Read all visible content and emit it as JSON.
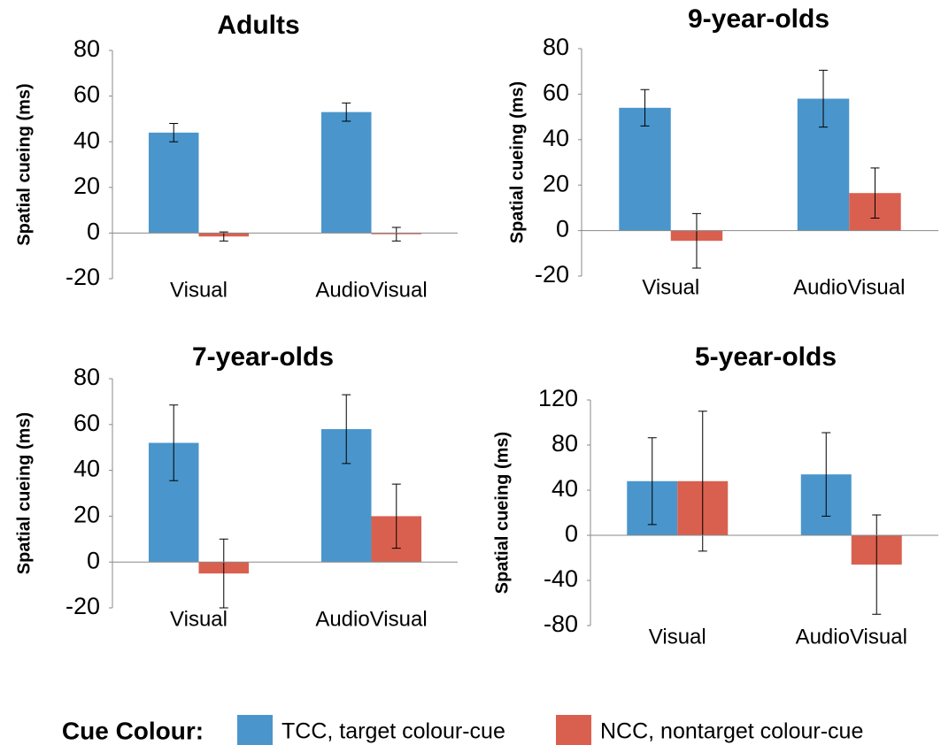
{
  "legend_title": "Cue Colour:",
  "chart_data": [
    {
      "type": "bar",
      "title": "Adults",
      "ylabel": "Spatial cueing (ms)",
      "categories": [
        "Visual",
        "AudioVisual"
      ],
      "ylim": [
        -20,
        80
      ],
      "yticks": [
        -20,
        0,
        20,
        40,
        60,
        80
      ],
      "grid": false,
      "series": [
        {
          "name": "TCC, target colour-cue",
          "color": "#4a96cc",
          "values": [
            44,
            53
          ],
          "errors": [
            4,
            4
          ]
        },
        {
          "name": "NCC, nontarget colour-cue",
          "color": "#d9604f",
          "values": [
            -1.5,
            -0.5
          ],
          "errors": [
            2,
            3
          ]
        }
      ]
    },
    {
      "type": "bar",
      "title": "9-year-olds",
      "ylabel": "Spatial cueing (ms)",
      "categories": [
        "Visual",
        "AudioVisual"
      ],
      "ylim": [
        -20,
        80
      ],
      "yticks": [
        -20,
        0,
        20,
        40,
        60,
        80
      ],
      "grid": false,
      "series": [
        {
          "name": "TCC, target colour-cue",
          "color": "#4a96cc",
          "values": [
            54,
            58
          ],
          "errors": [
            8,
            12.5
          ]
        },
        {
          "name": "NCC, nontarget colour-cue",
          "color": "#d9604f",
          "values": [
            -4.5,
            16.5
          ],
          "errors": [
            12,
            11
          ]
        }
      ]
    },
    {
      "type": "bar",
      "title": "7-year-olds",
      "ylabel": "Spatial cueing (ms)",
      "categories": [
        "Visual",
        "AudioVisual"
      ],
      "ylim": [
        -20,
        80
      ],
      "yticks": [
        -20,
        0,
        20,
        40,
        60,
        80
      ],
      "grid": false,
      "series": [
        {
          "name": "TCC, target colour-cue",
          "color": "#4a96cc",
          "values": [
            52,
            58
          ],
          "errors": [
            16.5,
            15
          ]
        },
        {
          "name": "NCC, nontarget colour-cue",
          "color": "#d9604f",
          "values": [
            -5,
            20
          ],
          "errors": [
            15,
            14
          ]
        }
      ]
    },
    {
      "type": "bar",
      "title": "5-year-olds",
      "ylabel": "Spatial cueing (ms)",
      "categories": [
        "Visual",
        "AudioVisual"
      ],
      "ylim": [
        -80,
        120
      ],
      "yticks": [
        -80,
        -40,
        0,
        40,
        80,
        120
      ],
      "grid": false,
      "series": [
        {
          "name": "TCC, target colour-cue",
          "color": "#4a96cc",
          "values": [
            48,
            54
          ],
          "errors": [
            38.5,
            37
          ]
        },
        {
          "name": "NCC, nontarget colour-cue",
          "color": "#d9604f",
          "values": [
            48,
            -26
          ],
          "errors": [
            62,
            44
          ]
        }
      ]
    }
  ]
}
